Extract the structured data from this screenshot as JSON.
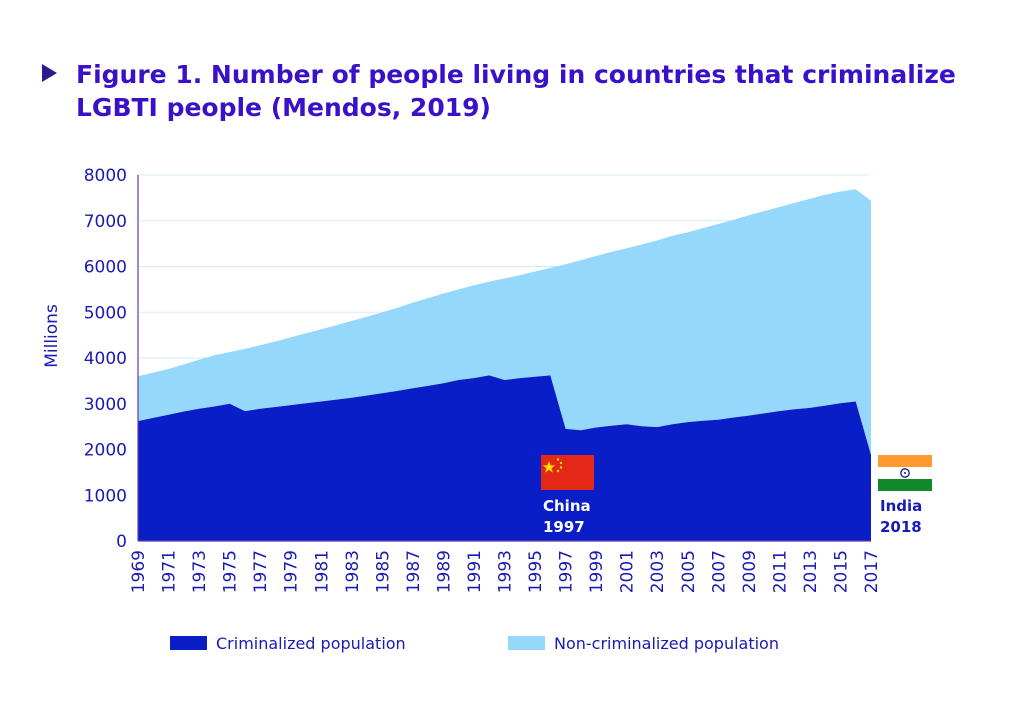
{
  "title": "Figure 1. Number of people living in countries that criminalize LGBTI people (Mendos, 2019)",
  "chart_data": {
    "type": "area",
    "ylabel": "Millions",
    "ylim": [
      0,
      8000
    ],
    "yticks": [
      0,
      1000,
      2000,
      3000,
      4000,
      5000,
      6000,
      7000,
      8000
    ],
    "xticks": [
      "1969",
      "1971",
      "1973",
      "1975",
      "1977",
      "1979",
      "1981",
      "1983",
      "1985",
      "1987",
      "1989",
      "1991",
      "1993",
      "1995",
      "1997",
      "1999",
      "2001",
      "2003",
      "2005",
      "2007",
      "2009",
      "2011",
      "2013",
      "2015",
      "2017"
    ],
    "x": [
      1969,
      1970,
      1971,
      1972,
      1973,
      1974,
      1975,
      1976,
      1977,
      1978,
      1979,
      1980,
      1981,
      1982,
      1983,
      1984,
      1985,
      1986,
      1987,
      1988,
      1989,
      1990,
      1991,
      1992,
      1993,
      1994,
      1995,
      1996,
      1997,
      1998,
      1999,
      2000,
      2001,
      2002,
      2003,
      2004,
      2005,
      2006,
      2007,
      2008,
      2009,
      2010,
      2011,
      2012,
      2013,
      2014,
      2015,
      2016,
      2017
    ],
    "series": [
      {
        "name": "Criminalized population",
        "color": "#0a1ec8",
        "values": [
          2620,
          2690,
          2760,
          2830,
          2890,
          2940,
          3000,
          2840,
          2890,
          2930,
          2970,
          3010,
          3050,
          3090,
          3130,
          3180,
          3230,
          3280,
          3340,
          3390,
          3450,
          3520,
          3560,
          3620,
          3520,
          3560,
          3590,
          3620,
          2450,
          2420,
          2480,
          2520,
          2550,
          2510,
          2490,
          2550,
          2600,
          2630,
          2650,
          2700,
          2740,
          2790,
          2840,
          2880,
          2910,
          2960,
          3010,
          3050,
          1880
        ]
      },
      {
        "name": "Non-criminalized population",
        "color": "#96d8fc",
        "values": [
          980,
          990,
          1000,
          1030,
          1070,
          1120,
          1130,
          1360,
          1390,
          1430,
          1480,
          1530,
          1580,
          1630,
          1680,
          1720,
          1770,
          1820,
          1870,
          1920,
          1960,
          1980,
          2030,
          2050,
          2220,
          2250,
          2300,
          2350,
          3600,
          3720,
          3750,
          3800,
          3850,
          3970,
          4080,
          4120,
          4150,
          4210,
          4280,
          4320,
          4380,
          4420,
          4460,
          4510,
          4570,
          4610,
          4630,
          4640,
          5560
        ]
      }
    ],
    "annotations": [
      {
        "name": "china",
        "label": "China",
        "year_label": "1997",
        "x": 1997,
        "flag": "china-flag"
      },
      {
        "name": "india",
        "label": "India",
        "year_label": "2018",
        "x": 2018,
        "flag": "india-flag"
      }
    ],
    "legend": "bottom",
    "grid": true
  }
}
